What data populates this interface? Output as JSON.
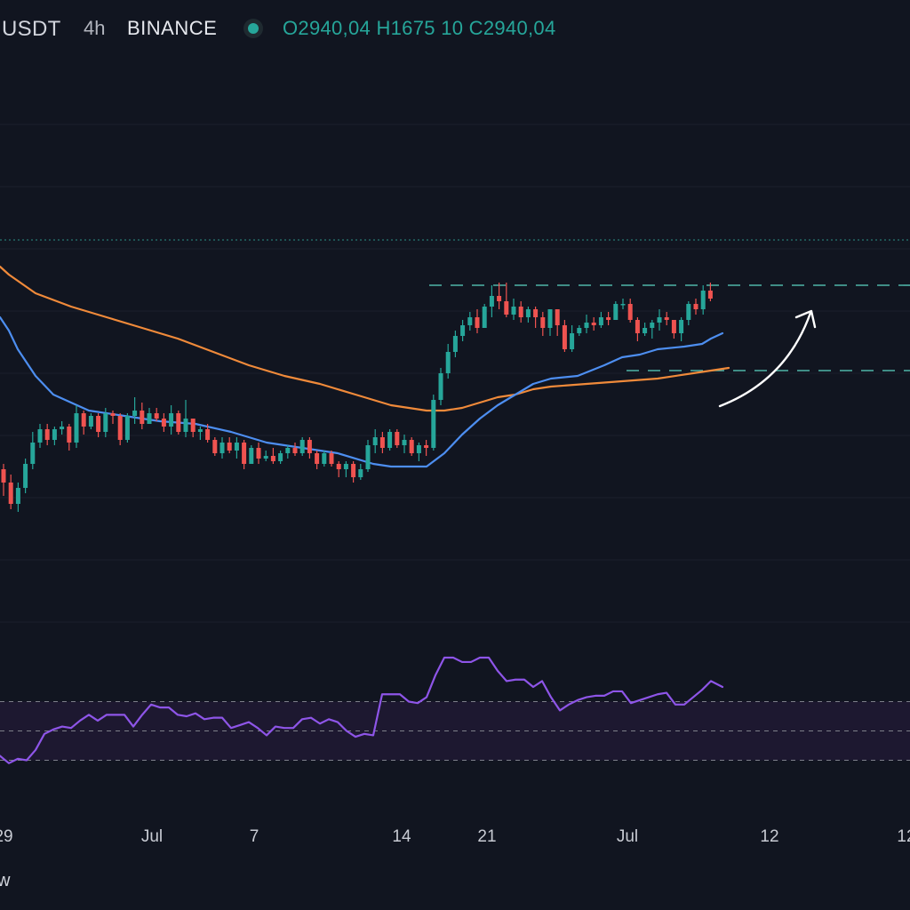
{
  "header": {
    "symbol": "USDT",
    "timeframe": "4h",
    "exchange": "BINANCE",
    "ohlc": "O2940,04 H1675 10 C2940,04",
    "status_color": "#26a69a"
  },
  "footer": {
    "text": "w"
  },
  "chart_data": {
    "type": "candlestick",
    "x_ticks": [
      "29",
      "Jul",
      "7",
      "14",
      "21",
      "Jul",
      "12",
      "12"
    ],
    "colors": {
      "up": "#26a69a",
      "down": "#ef5350",
      "ma_fast": "#4d8ef0",
      "ma_slow": "#f08a3a",
      "rsi": "#8e55e8",
      "rsi_band": "#1d1830"
    },
    "price_ylim": [
      0,
      100
    ],
    "candles": [
      [
        40,
        35,
        42,
        30
      ],
      [
        35,
        27,
        38,
        25
      ],
      [
        27,
        33,
        35,
        24
      ],
      [
        33,
        42,
        44,
        31
      ],
      [
        42,
        50,
        54,
        40
      ],
      [
        50,
        55,
        57,
        48
      ],
      [
        55,
        51,
        57,
        49
      ],
      [
        51,
        55,
        56,
        49
      ],
      [
        55,
        56,
        58,
        53
      ],
      [
        56,
        50,
        57,
        47
      ],
      [
        50,
        61,
        64,
        48
      ],
      [
        61,
        56,
        62,
        53
      ],
      [
        56,
        60,
        61,
        55
      ],
      [
        60,
        54,
        61,
        52
      ],
      [
        54,
        61,
        63,
        52
      ],
      [
        61,
        60,
        62,
        57
      ],
      [
        60,
        51,
        61,
        49
      ],
      [
        51,
        60,
        61,
        50
      ],
      [
        60,
        62,
        67,
        57
      ],
      [
        62,
        57,
        65,
        55
      ],
      [
        57,
        61,
        63,
        58
      ],
      [
        61,
        59,
        63,
        58
      ],
      [
        59,
        56,
        61,
        54
      ],
      [
        56,
        61,
        64,
        53
      ],
      [
        61,
        54,
        62,
        53
      ],
      [
        54,
        59,
        66,
        52
      ],
      [
        59,
        54,
        59,
        52
      ],
      [
        54,
        55,
        56,
        51
      ],
      [
        55,
        51,
        57,
        50
      ],
      [
        51,
        46,
        52,
        45
      ],
      [
        46,
        50,
        52,
        44
      ],
      [
        50,
        47,
        52,
        46
      ],
      [
        47,
        50,
        52,
        44
      ],
      [
        50,
        42,
        51,
        40
      ],
      [
        42,
        48,
        49,
        42
      ],
      [
        48,
        44,
        50,
        42
      ],
      [
        44,
        45,
        47,
        43
      ],
      [
        45,
        43,
        48,
        42
      ],
      [
        43,
        46,
        47,
        42
      ],
      [
        46,
        48,
        49,
        44
      ],
      [
        48,
        46,
        50,
        45
      ],
      [
        46,
        51,
        52,
        45
      ],
      [
        51,
        46,
        52,
        44
      ],
      [
        46,
        42,
        47,
        40
      ],
      [
        42,
        46,
        47,
        41
      ],
      [
        46,
        42,
        47,
        41
      ],
      [
        42,
        40,
        43,
        37
      ],
      [
        40,
        42,
        43,
        37
      ],
      [
        42,
        37,
        43,
        35
      ],
      [
        37,
        40,
        42,
        36
      ],
      [
        40,
        49,
        51,
        39
      ],
      [
        49,
        52,
        55,
        46
      ],
      [
        52,
        48,
        54,
        46
      ],
      [
        48,
        54,
        55,
        47
      ],
      [
        54,
        49,
        55,
        48
      ],
      [
        49,
        51,
        53,
        46
      ],
      [
        51,
        46,
        52,
        45
      ],
      [
        46,
        49,
        50,
        43
      ],
      [
        49,
        48,
        51,
        45
      ],
      [
        48,
        66,
        68,
        47
      ],
      [
        66,
        76,
        78,
        64
      ],
      [
        76,
        84,
        87,
        74
      ],
      [
        84,
        90,
        92,
        82
      ],
      [
        90,
        94,
        96,
        88
      ],
      [
        94,
        97,
        99,
        92
      ],
      [
        97,
        93,
        100,
        91
      ],
      [
        93,
        101,
        102,
        93
      ],
      [
        101,
        105,
        109,
        97
      ],
      [
        105,
        103,
        110,
        100
      ],
      [
        103,
        98,
        110,
        97
      ],
      [
        98,
        101,
        104,
        96
      ],
      [
        101,
        97,
        103,
        95
      ],
      [
        97,
        100,
        101,
        95
      ],
      [
        100,
        97,
        101,
        93
      ],
      [
        97,
        93,
        99,
        90
      ],
      [
        93,
        100,
        100,
        90
      ],
      [
        100,
        94,
        100,
        90
      ],
      [
        94,
        85,
        96,
        84
      ],
      [
        85,
        91,
        94,
        84
      ],
      [
        91,
        93,
        94,
        90
      ],
      [
        93,
        95,
        98,
        91
      ],
      [
        95,
        94,
        97,
        92
      ],
      [
        94,
        97,
        99,
        93
      ],
      [
        97,
        96,
        99,
        94
      ],
      [
        96,
        102,
        103,
        96
      ],
      [
        102,
        102,
        104,
        100
      ],
      [
        102,
        96,
        104,
        95
      ],
      [
        96,
        91,
        97,
        88
      ],
      [
        91,
        93,
        95,
        90
      ],
      [
        93,
        95,
        96,
        89
      ],
      [
        95,
        97,
        100,
        92
      ],
      [
        97,
        96,
        99,
        94
      ],
      [
        96,
        91,
        96,
        89
      ],
      [
        91,
        96,
        97,
        88
      ],
      [
        96,
        102,
        103,
        94
      ],
      [
        102,
        100,
        104,
        98
      ],
      [
        100,
        107,
        109,
        98
      ],
      [
        107,
        104,
        110,
        103
      ]
    ],
    "ma_fast": [
      [
        0,
        97
      ],
      [
        10,
        92
      ],
      [
        20,
        85
      ],
      [
        40,
        75
      ],
      [
        60,
        68
      ],
      [
        100,
        62
      ],
      [
        140,
        60
      ],
      [
        180,
        58
      ],
      [
        220,
        57
      ],
      [
        260,
        54
      ],
      [
        300,
        50
      ],
      [
        340,
        48
      ],
      [
        380,
        46
      ],
      [
        420,
        42
      ],
      [
        440,
        41
      ],
      [
        460,
        41
      ],
      [
        480,
        41
      ],
      [
        500,
        46
      ],
      [
        520,
        53
      ],
      [
        540,
        59
      ],
      [
        560,
        64
      ],
      [
        580,
        68
      ],
      [
        600,
        72
      ],
      [
        620,
        74
      ],
      [
        650,
        75
      ],
      [
        680,
        79
      ],
      [
        700,
        82
      ],
      [
        720,
        83
      ],
      [
        740,
        85
      ],
      [
        770,
        86
      ],
      [
        790,
        87
      ],
      [
        800,
        89
      ],
      [
        813,
        91
      ]
    ],
    "ma_slow": [
      [
        0,
        116
      ],
      [
        10,
        113
      ],
      [
        40,
        106
      ],
      [
        80,
        101
      ],
      [
        120,
        97
      ],
      [
        160,
        93
      ],
      [
        200,
        89
      ],
      [
        240,
        84
      ],
      [
        280,
        79
      ],
      [
        320,
        75
      ],
      [
        360,
        72
      ],
      [
        400,
        68
      ],
      [
        440,
        64
      ],
      [
        480,
        62
      ],
      [
        500,
        62
      ],
      [
        520,
        63
      ],
      [
        540,
        65
      ],
      [
        560,
        67
      ],
      [
        580,
        68
      ],
      [
        600,
        70
      ],
      [
        620,
        71
      ],
      [
        660,
        72
      ],
      [
        700,
        73
      ],
      [
        740,
        74
      ],
      [
        780,
        76
      ],
      [
        800,
        77
      ],
      [
        820,
        78
      ]
    ],
    "rsi": [
      [
        0,
        33
      ],
      [
        10,
        28
      ],
      [
        20,
        31
      ],
      [
        30,
        30
      ],
      [
        40,
        37
      ],
      [
        50,
        48
      ],
      [
        60,
        51
      ],
      [
        70,
        53
      ],
      [
        80,
        52
      ],
      [
        90,
        57
      ],
      [
        100,
        61
      ],
      [
        110,
        57
      ],
      [
        120,
        61
      ],
      [
        130,
        61
      ],
      [
        140,
        61
      ],
      [
        150,
        53
      ],
      [
        160,
        61
      ],
      [
        170,
        68
      ],
      [
        180,
        66
      ],
      [
        190,
        66
      ],
      [
        200,
        61
      ],
      [
        210,
        60
      ],
      [
        220,
        62
      ],
      [
        230,
        58
      ],
      [
        240,
        59
      ],
      [
        250,
        59
      ],
      [
        260,
        52
      ],
      [
        270,
        54
      ],
      [
        280,
        56
      ],
      [
        290,
        52
      ],
      [
        300,
        47
      ],
      [
        310,
        53
      ],
      [
        320,
        52
      ],
      [
        330,
        52
      ],
      [
        340,
        58
      ],
      [
        350,
        59
      ],
      [
        360,
        55
      ],
      [
        370,
        58
      ],
      [
        380,
        56
      ],
      [
        390,
        50
      ],
      [
        400,
        46
      ],
      [
        410,
        48
      ],
      [
        420,
        47
      ],
      [
        430,
        75
      ],
      [
        440,
        75
      ],
      [
        450,
        75
      ],
      [
        460,
        70
      ],
      [
        470,
        69
      ],
      [
        480,
        73
      ],
      [
        490,
        88
      ],
      [
        500,
        100
      ],
      [
        510,
        100
      ],
      [
        520,
        97
      ],
      [
        530,
        97
      ],
      [
        540,
        100
      ],
      [
        550,
        100
      ],
      [
        560,
        91
      ],
      [
        570,
        84
      ],
      [
        580,
        85
      ],
      [
        590,
        85
      ],
      [
        600,
        80
      ],
      [
        610,
        84
      ],
      [
        620,
        73
      ],
      [
        630,
        64
      ],
      [
        640,
        68
      ],
      [
        650,
        71
      ],
      [
        660,
        73
      ],
      [
        670,
        74
      ],
      [
        680,
        74
      ],
      [
        690,
        77
      ],
      [
        700,
        77
      ],
      [
        710,
        69
      ],
      [
        720,
        71
      ],
      [
        730,
        73
      ],
      [
        740,
        75
      ],
      [
        750,
        76
      ],
      [
        760,
        68
      ],
      [
        770,
        68
      ],
      [
        780,
        73
      ],
      [
        790,
        78
      ],
      [
        800,
        84
      ],
      [
        813,
        80
      ]
    ],
    "rsi_ylim": [
      0,
      100
    ],
    "rsi_levels": [
      70,
      50,
      30
    ],
    "resistance_level": 109,
    "support_level": 77,
    "upper_dotted_level": 126
  }
}
